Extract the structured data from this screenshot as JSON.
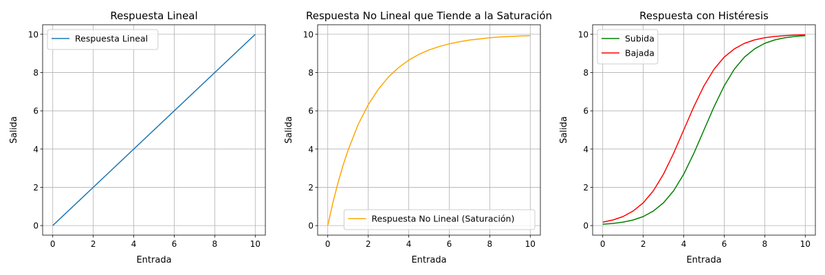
{
  "chart_data": [
    {
      "type": "line",
      "title": "Respuesta Lineal",
      "xlabel": "Entrada",
      "ylabel": "Salida",
      "xlim": [
        -0.5,
        10.5
      ],
      "ylim": [
        -0.5,
        10.5
      ],
      "xticks": [
        0,
        2,
        4,
        6,
        8,
        10
      ],
      "yticks": [
        0,
        2,
        4,
        6,
        8,
        10
      ],
      "grid": true,
      "legend_position": "top-left",
      "series": [
        {
          "name": "Respuesta Lineal",
          "color": "#1f77b4",
          "x": [
            0,
            2,
            4,
            6,
            8,
            10
          ],
          "y": [
            0,
            2,
            4,
            6,
            8,
            10
          ]
        }
      ]
    },
    {
      "type": "line",
      "title": "Respuesta No Lineal que Tiende a la Saturación",
      "xlabel": "Entrada",
      "ylabel": "Salida",
      "xlim": [
        -0.5,
        10.5
      ],
      "ylim": [
        -0.5,
        10.5
      ],
      "xticks": [
        0,
        2,
        4,
        6,
        8,
        10
      ],
      "yticks": [
        0,
        2,
        4,
        6,
        8,
        10
      ],
      "grid": true,
      "legend_position": "bottom-right",
      "series": [
        {
          "name": "Respuesta No Lineal (Saturación)",
          "color": "#ffa500",
          "x": [
            0,
            0.25,
            0.5,
            0.75,
            1,
            1.5,
            2,
            2.5,
            3,
            3.5,
            4,
            4.5,
            5,
            5.5,
            6,
            6.5,
            7,
            7.5,
            8,
            8.5,
            9,
            9.5,
            10
          ],
          "y": [
            0,
            1.18,
            2.21,
            3.13,
            3.93,
            5.28,
            6.32,
            7.13,
            7.77,
            8.26,
            8.65,
            8.95,
            9.18,
            9.36,
            9.5,
            9.61,
            9.7,
            9.76,
            9.82,
            9.86,
            9.89,
            9.91,
            9.93
          ]
        }
      ]
    },
    {
      "type": "line",
      "title": "Respuesta con Histéresis",
      "xlabel": "Entrada",
      "ylabel": "Salida",
      "xlim": [
        -0.5,
        10.5
      ],
      "ylim": [
        -0.5,
        10.5
      ],
      "xticks": [
        0,
        2,
        4,
        6,
        8,
        10
      ],
      "yticks": [
        0,
        2,
        4,
        6,
        8,
        10
      ],
      "grid": true,
      "legend_position": "top-left",
      "series": [
        {
          "name": "Subida",
          "color": "#008000",
          "x": [
            0,
            0.5,
            1,
            1.5,
            2,
            2.5,
            3,
            3.5,
            4,
            4.5,
            5,
            5.5,
            6,
            6.5,
            7,
            7.5,
            8,
            8.5,
            9,
            9.5,
            10
          ],
          "y": [
            0.07,
            0.11,
            0.18,
            0.29,
            0.47,
            0.76,
            1.19,
            1.82,
            2.69,
            3.78,
            5.0,
            6.22,
            7.31,
            8.18,
            8.81,
            9.24,
            9.53,
            9.71,
            9.82,
            9.89,
            9.93
          ]
        },
        {
          "name": "Bajada",
          "color": "#ff0000",
          "x": [
            0,
            0.5,
            1,
            1.5,
            2,
            2.5,
            3,
            3.5,
            4,
            4.5,
            5,
            5.5,
            6,
            6.5,
            7,
            7.5,
            8,
            8.5,
            9,
            9.5,
            10
          ],
          "y": [
            0.18,
            0.29,
            0.47,
            0.76,
            1.19,
            1.82,
            2.69,
            3.78,
            5.0,
            6.22,
            7.31,
            8.18,
            8.81,
            9.24,
            9.53,
            9.71,
            9.82,
            9.89,
            9.93,
            9.96,
            9.98
          ]
        }
      ]
    }
  ]
}
